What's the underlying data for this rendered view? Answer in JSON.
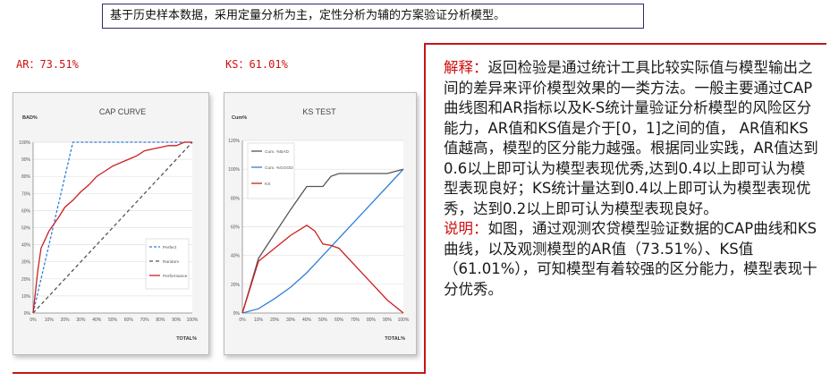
{
  "banner": "基于历史样本数据，采用定量分析为主，定性分析为辅的方案验证分析模型。",
  "metrics": {
    "ar": "AR：73.51%",
    "ks": "KS：61.01%"
  },
  "cap_chart": {
    "title": "CAP CURVE",
    "ylabel": "BAD%",
    "xlabel": "TOTAL%",
    "xticks": [
      "0%",
      "10%",
      "20%",
      "30%",
      "40%",
      "50%",
      "60%",
      "70%",
      "80%",
      "90%",
      "100%"
    ],
    "yticks": [
      "0%",
      "10%",
      "20%",
      "30%",
      "40%",
      "50%",
      "60%",
      "70%",
      "80%",
      "90%",
      "100%"
    ],
    "legend": [
      "Perfect",
      "Random",
      "Performance"
    ]
  },
  "ks_chart": {
    "title": "KS TEST",
    "ylabel": "Cum%",
    "xlabel": "TOTAL%",
    "xticks": [
      "0%",
      "10%",
      "20%",
      "30%",
      "40%",
      "50%",
      "60%",
      "70%",
      "80%",
      "90%",
      "100%"
    ],
    "yticks": [
      "0%",
      "20%",
      "40%",
      "60%",
      "80%",
      "100%",
      "120%"
    ],
    "legend": [
      "Cum. %BAD",
      "Cum. %GOOD",
      "KS"
    ]
  },
  "chart_data": [
    {
      "type": "line",
      "title": "CAP CURVE",
      "xlabel": "TOTAL%",
      "ylabel": "BAD%",
      "xlim": [
        0,
        100
      ],
      "ylim": [
        0,
        100
      ],
      "series": [
        {
          "name": "Perfect",
          "x": [
            0,
            25,
            100
          ],
          "y": [
            0,
            100,
            100
          ],
          "color": "#2f7fd6"
        },
        {
          "name": "Random",
          "x": [
            0,
            100
          ],
          "y": [
            0,
            100
          ],
          "color": "#555555"
        },
        {
          "name": "Performance",
          "x": [
            0,
            3,
            5,
            7,
            10,
            13,
            16,
            20,
            25,
            30,
            35,
            40,
            45,
            50,
            55,
            60,
            65,
            70,
            75,
            80,
            85,
            90,
            95,
            100
          ],
          "y": [
            0,
            25,
            38,
            42,
            48,
            52,
            56,
            62,
            66,
            71,
            75,
            80,
            83,
            86,
            88,
            90,
            92,
            95,
            96,
            97,
            98,
            98,
            100,
            100
          ],
          "color": "#cc1f1f"
        }
      ]
    },
    {
      "type": "line",
      "title": "KS TEST",
      "xlabel": "TOTAL%",
      "ylabel": "Cum%",
      "xlim": [
        0,
        100
      ],
      "ylim": [
        0,
        120
      ],
      "series": [
        {
          "name": "Cum. %BAD",
          "x": [
            0,
            10,
            20,
            30,
            40,
            45,
            50,
            55,
            60,
            70,
            80,
            90,
            100
          ],
          "y": [
            0,
            38,
            55,
            72,
            88,
            88,
            88,
            95,
            97,
            97,
            97,
            97,
            100
          ],
          "color": "#555555"
        },
        {
          "name": "Cum. %GOOD",
          "x": [
            0,
            10,
            20,
            30,
            40,
            50,
            60,
            70,
            80,
            90,
            100
          ],
          "y": [
            0,
            3,
            10,
            18,
            28,
            40,
            52,
            64,
            76,
            88,
            100
          ],
          "color": "#2f7fd6"
        },
        {
          "name": "KS",
          "x": [
            0,
            10,
            20,
            30,
            40,
            45,
            50,
            55,
            60,
            70,
            80,
            90,
            100
          ],
          "y": [
            0,
            36,
            45,
            54,
            61,
            57,
            48,
            47,
            45,
            33,
            21,
            9,
            0
          ],
          "color": "#cc1f1f"
        }
      ]
    }
  ],
  "explanation": {
    "label": "解释：",
    "text": "返回检验是通过统计工具比较实际值与模型输出之间的差异来评价模型效果的一类方法。一般主要通过CAP曲线图和AR指标以及K-S统计量验证分析模型的风险区分能力，AR值和KS值是介于[0，1]之间的值， AR值和KS值越高，模型的区分能力越强。根据同业实践，AR值达到0.6以上即可认为模型表现优秀,达到0.4以上即可认为模型表现良好；KS统计量达到0.4以上即可认为模型表现优秀，达到0.2以上即可认为模型表现良好。"
  },
  "note": {
    "label": "说明：",
    "text": "如图，通过观测农贷模型验证数据的CAP曲线和KS曲线，以及观测模型的AR值（73.51%）、KS值（61.01%），可知模型有着较强的区分能力，模型表现十分优秀。"
  }
}
